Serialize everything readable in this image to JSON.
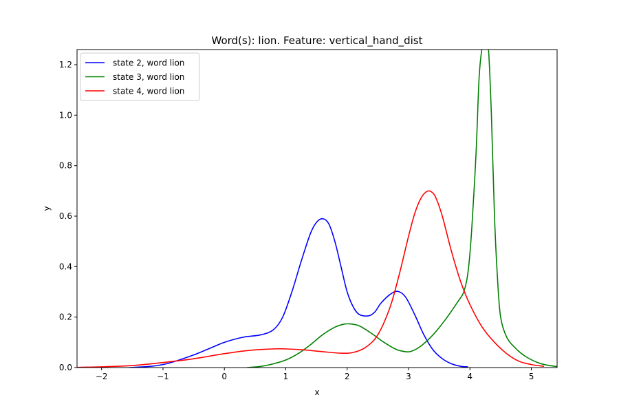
{
  "chart_data": {
    "type": "line",
    "title": "Word(s): lion. Feature: vertical_hand_dist",
    "xlabel": "x",
    "ylabel": "y",
    "xlim": [
      -2.4,
      5.42
    ],
    "ylim": [
      0,
      1.26
    ],
    "xticks": [
      -2,
      -1,
      0,
      1,
      2,
      3,
      4,
      5
    ],
    "yticks": [
      0.0,
      0.2,
      0.4,
      0.6,
      0.8,
      1.0,
      1.2
    ],
    "xtick_labels": [
      "−2",
      "−1",
      "0",
      "1",
      "2",
      "3",
      "4",
      "5"
    ],
    "ytick_labels": [
      "0.0",
      "0.2",
      "0.4",
      "0.6",
      "0.8",
      "1.0",
      "1.2"
    ],
    "grid": false,
    "legend_position": "top-left",
    "series": [
      {
        "name": "state 2, word lion",
        "color": "#0000ff",
        "x": [
          -1.55,
          -1.2,
          -1.0,
          -0.8,
          -0.5,
          -0.2,
          0.0,
          0.3,
          0.6,
          0.8,
          0.95,
          1.1,
          1.25,
          1.4,
          1.5,
          1.6,
          1.7,
          1.8,
          1.9,
          2.0,
          2.1,
          2.2,
          2.35,
          2.45,
          2.55,
          2.7,
          2.82,
          2.95,
          3.1,
          3.25,
          3.4,
          3.55,
          3.7,
          3.85,
          3.96
        ],
        "y": [
          0.0,
          0.005,
          0.012,
          0.025,
          0.05,
          0.08,
          0.1,
          0.12,
          0.13,
          0.15,
          0.2,
          0.3,
          0.42,
          0.53,
          0.575,
          0.59,
          0.57,
          0.5,
          0.4,
          0.3,
          0.24,
          0.21,
          0.205,
          0.22,
          0.255,
          0.29,
          0.302,
          0.28,
          0.21,
          0.13,
          0.07,
          0.035,
          0.015,
          0.005,
          0.003
        ]
      },
      {
        "name": "state 3, word lion",
        "color": "#008000",
        "x": [
          0.37,
          0.6,
          0.8,
          1.0,
          1.2,
          1.4,
          1.6,
          1.8,
          1.95,
          2.05,
          2.2,
          2.4,
          2.6,
          2.8,
          2.95,
          3.05,
          3.2,
          3.4,
          3.6,
          3.8,
          3.9,
          3.97,
          4.03,
          4.1,
          4.15,
          4.2,
          4.25,
          4.3,
          4.35,
          4.4,
          4.45,
          4.5,
          4.6,
          4.75,
          4.9,
          5.1,
          5.25,
          5.42
        ],
        "y": [
          0.0,
          0.005,
          0.015,
          0.03,
          0.055,
          0.09,
          0.13,
          0.16,
          0.172,
          0.173,
          0.165,
          0.135,
          0.1,
          0.072,
          0.063,
          0.065,
          0.085,
          0.13,
          0.19,
          0.26,
          0.3,
          0.38,
          0.55,
          0.85,
          1.15,
          1.27,
          1.3,
          1.27,
          1.0,
          0.6,
          0.35,
          0.2,
          0.12,
          0.075,
          0.045,
          0.02,
          0.01,
          0.004
        ]
      },
      {
        "name": "state 4, word lion",
        "color": "#ff0000",
        "x": [
          -2.4,
          -2.0,
          -1.5,
          -1.0,
          -0.5,
          0.0,
          0.4,
          0.8,
          1.0,
          1.3,
          1.6,
          1.9,
          2.1,
          2.3,
          2.5,
          2.7,
          2.85,
          3.0,
          3.1,
          3.2,
          3.3,
          3.38,
          3.45,
          3.55,
          3.7,
          3.85,
          4.0,
          4.2,
          4.4,
          4.6,
          4.8,
          5.0,
          5.2
        ],
        "y": [
          0.001,
          0.003,
          0.008,
          0.02,
          0.035,
          0.055,
          0.068,
          0.074,
          0.074,
          0.07,
          0.063,
          0.057,
          0.06,
          0.08,
          0.13,
          0.24,
          0.37,
          0.52,
          0.61,
          0.67,
          0.698,
          0.695,
          0.67,
          0.6,
          0.46,
          0.34,
          0.25,
          0.16,
          0.1,
          0.055,
          0.025,
          0.012,
          0.005
        ]
      }
    ]
  }
}
